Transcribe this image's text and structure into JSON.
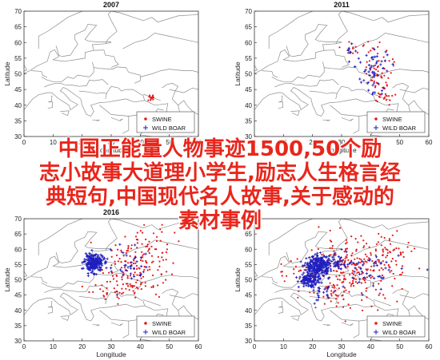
{
  "chart_data": [
    {
      "type": "scatter",
      "title": "2007",
      "xlabel": "Longitude",
      "ylabel": "Latitude",
      "xlim": [
        0,
        60
      ],
      "ylim": [
        30,
        70
      ],
      "xticks": [
        "0",
        "10",
        "20",
        "30",
        "40",
        "50",
        "60"
      ],
      "yticks": [
        "30",
        "35",
        "40",
        "45",
        "50",
        "55",
        "60",
        "65",
        "70"
      ],
      "legend_position": "bottom-right",
      "series": [
        {
          "name": "SWINE",
          "color": "#e31a1c",
          "marker": "*",
          "clusters": [
            [
              44,
              42.3,
              1.0,
              0.5,
              14
            ]
          ]
        },
        {
          "name": "WILD BOAR",
          "color": "#1f1fbf",
          "marker": "+",
          "clusters": []
        }
      ]
    },
    {
      "type": "scatter",
      "title": "2011",
      "xlabel": "Longitude",
      "ylabel": "Latitude",
      "xlim": [
        0,
        60
      ],
      "ylim": [
        30,
        70
      ],
      "xticks": [
        "0",
        "10",
        "20",
        "30",
        "40",
        "50",
        "60"
      ],
      "yticks": [
        "30",
        "35",
        "40",
        "45",
        "50",
        "55",
        "60",
        "65",
        "70"
      ],
      "legend_position": "bottom-right",
      "series": [
        {
          "name": "SWINE",
          "color": "#e31a1c",
          "marker": "*",
          "clusters": [
            [
              43,
              47,
              2.5,
              3.5,
              40
            ],
            [
              42,
              55,
              2.5,
              3.0,
              25
            ],
            [
              33,
              57,
              2.0,
              1.5,
              10
            ],
            [
              45,
              42,
              1.5,
              1.0,
              10
            ]
          ]
        },
        {
          "name": "WILD BOAR",
          "color": "#1f1fbf",
          "marker": "+",
          "clusters": [
            [
              41,
              49,
              2.5,
              3.5,
              30
            ],
            [
              43,
              54,
              2.0,
              2.5,
              18
            ],
            [
              33,
              57,
              2.0,
              1.5,
              10
            ]
          ]
        }
      ]
    },
    {
      "type": "scatter",
      "title": "2016",
      "xlabel": "Longitude",
      "ylabel": "Latitude",
      "xlim": [
        0,
        60
      ],
      "ylim": [
        30,
        70
      ],
      "xticks": [
        "0",
        "10",
        "20",
        "30",
        "40",
        "50",
        "60"
      ],
      "yticks": [
        "30",
        "35",
        "40",
        "45",
        "50",
        "55",
        "60",
        "65",
        "70"
      ],
      "legend_position": "bottom-right",
      "series": [
        {
          "name": "SWINE",
          "color": "#e31a1c",
          "marker": "*",
          "clusters": [
            [
              38,
              54,
              5.5,
              5.0,
              130
            ],
            [
              42,
              62,
              5.0,
              3.0,
              35
            ],
            [
              35,
              48,
              4.0,
              2.5,
              25
            ],
            [
              26,
              46,
              2.5,
              2.0,
              12
            ]
          ]
        },
        {
          "name": "WILD BOAR",
          "color": "#1f1fbf",
          "marker": "+",
          "clusters": [
            [
              24,
              55.5,
              1.6,
              1.4,
              220
            ],
            [
              36,
              54,
              4.0,
              3.5,
              35
            ]
          ]
        }
      ]
    },
    {
      "type": "scatter",
      "title": "",
      "xlabel": "Longitude",
      "ylabel": "Latitude",
      "xlim": [
        0,
        60
      ],
      "ylim": [
        30,
        70
      ],
      "xticks": [
        "0",
        "10",
        "20",
        "30",
        "40",
        "50",
        "60"
      ],
      "yticks": [
        "30",
        "35",
        "40",
        "45",
        "50",
        "55",
        "60",
        "65",
        "70"
      ],
      "legend_position": "bottom-right",
      "series": [
        {
          "name": "SWINE",
          "color": "#e31a1c",
          "marker": "*",
          "clusters": [
            [
              34,
              53,
              8.0,
              5.0,
              240
            ],
            [
              45,
              60,
              6.0,
              3.5,
              45
            ],
            [
              27,
              46,
              3.0,
              2.5,
              25
            ],
            [
              15,
              53,
              3.5,
              2.0,
              20
            ]
          ]
        },
        {
          "name": "WILD BOAR",
          "color": "#1f1fbf",
          "marker": "+",
          "clusters": [
            [
              22,
              54.5,
              2.0,
              1.6,
              230
            ],
            [
              19,
              50,
              1.8,
              1.2,
              130
            ],
            [
              27,
              55,
              2.5,
              1.5,
              50
            ],
            [
              38,
              53,
              6.0,
              3.5,
              50
            ],
            [
              24,
              45,
              2.0,
              1.5,
              20
            ]
          ]
        }
      ]
    }
  ],
  "overlay": {
    "line1": "中国正能量人物事迹1500,50个励",
    "line2": "志小故事大道理小学生,励志人生格言经",
    "line3": "典短句,中国现代名人故事,关于感动的",
    "line4": "素材事例"
  },
  "colors": {
    "overlay_text": "#e8261c",
    "land": "#ffffff",
    "border": "#8c8c8c",
    "swine": "#e31a1c",
    "wild_boar": "#1f1fbf"
  }
}
